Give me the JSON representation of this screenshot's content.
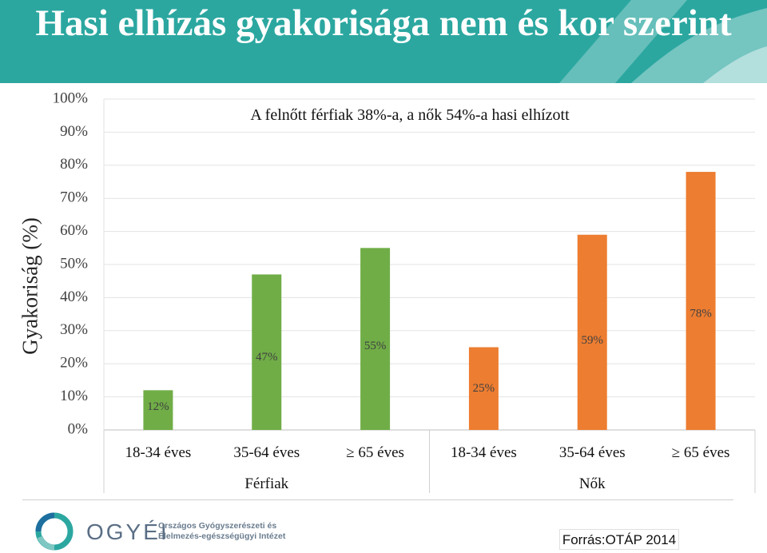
{
  "slide": {
    "title": "Hasi elhízás gyakorisága nem és kor szerint",
    "source": "Forrás:OTÁP 2014",
    "logo_text": "OGYÉI",
    "institute_line1": "Országos Gyógyszerészeti és",
    "institute_line2": "Élelmezés-egészségügyi Intézet"
  },
  "colors": {
    "header": "#2ba7a0",
    "men": "#70ad47",
    "women": "#ed7d31"
  },
  "chart_data": {
    "type": "bar",
    "subtitle": "A felnőtt férfiak 38%-a, a nők 54%-a hasi elhízott",
    "ylabel": "Gyakoriság (%)",
    "ylim": [
      0,
      100
    ],
    "yticks": [
      "0%",
      "10%",
      "20%",
      "30%",
      "40%",
      "50%",
      "60%",
      "70%",
      "80%",
      "90%",
      "100%"
    ],
    "groups": [
      {
        "name": "Férfiak",
        "color": "#70ad47",
        "categories": [
          "18-34 éves",
          "35-64 éves",
          "≥ 65 éves"
        ],
        "values": [
          12,
          47,
          55
        ],
        "labels": [
          "12%",
          "47%",
          "55%"
        ]
      },
      {
        "name": "Nők",
        "color": "#ed7d31",
        "categories": [
          "18-34 éves",
          "35-64 éves",
          "≥ 65 éves"
        ],
        "values": [
          25,
          59,
          78
        ],
        "labels": [
          "25%",
          "59%",
          "78%"
        ]
      }
    ],
    "grid": true
  }
}
